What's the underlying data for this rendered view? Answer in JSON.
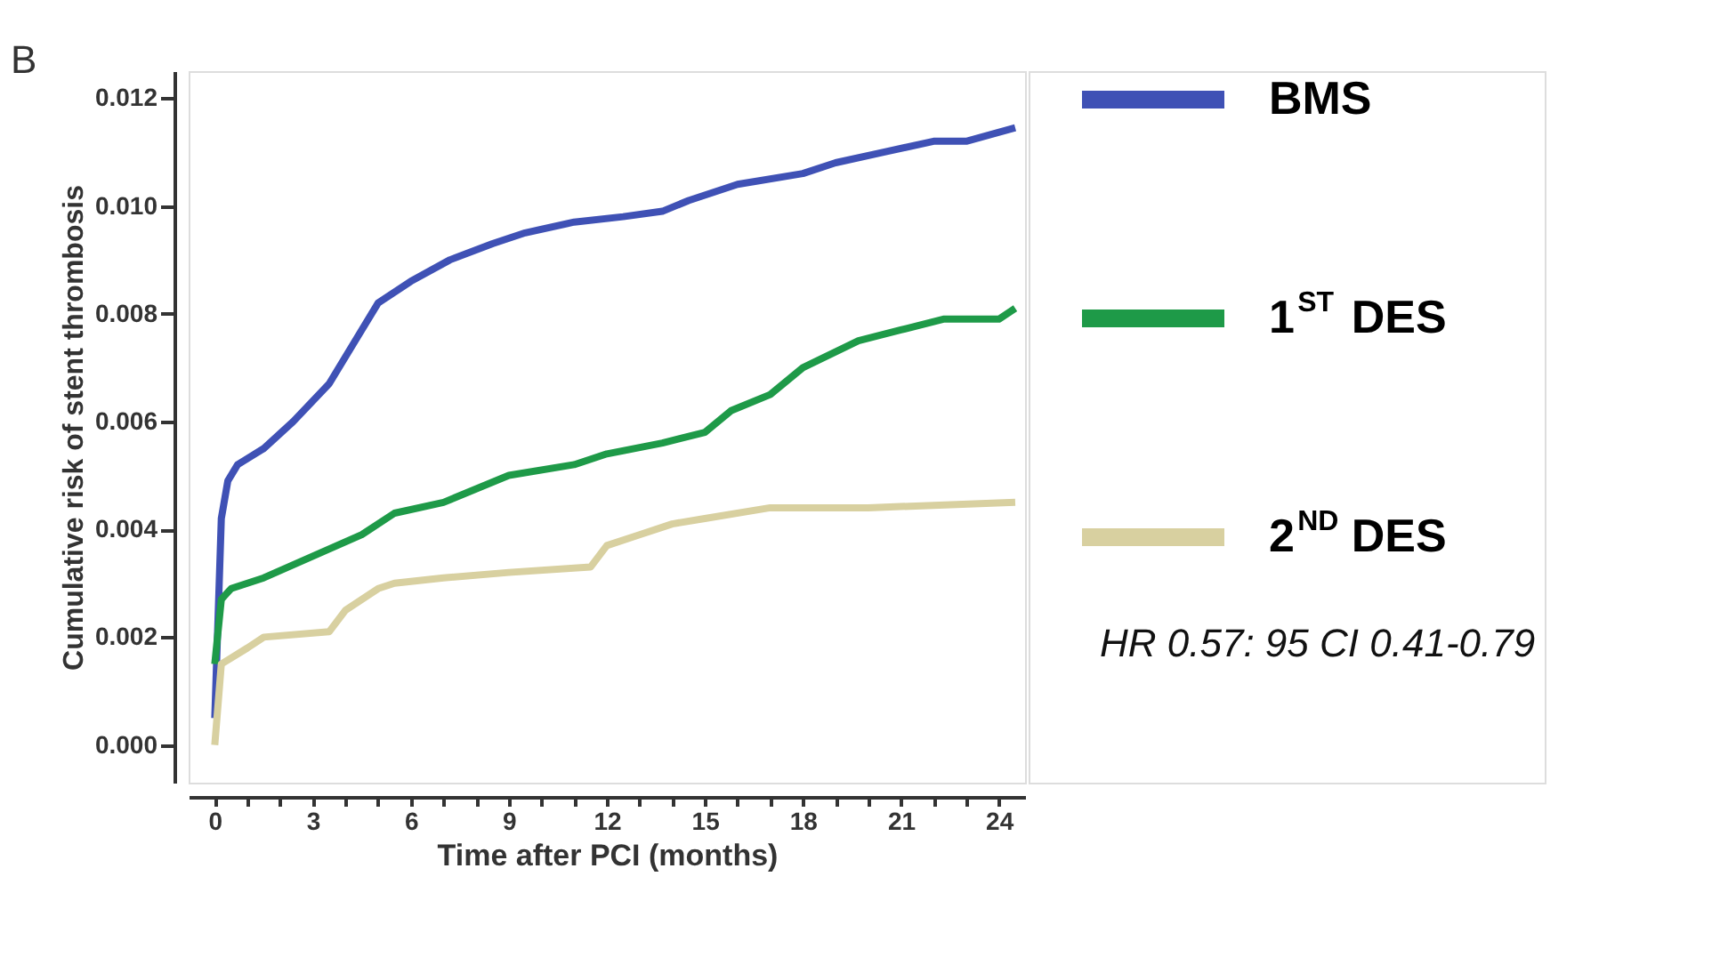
{
  "chart_data": {
    "type": "line",
    "xlabel": "Time after PCI (months)",
    "ylabel": "Cumulative risk of stent thrombosis",
    "annotations": [
      "B",
      "HR 0.57: 95 CI 0.41-0.79"
    ],
    "series": [
      {
        "name": "BMS",
        "color": "#3f51b5",
        "x": [
          0,
          0.2,
          0.4,
          0.7,
          1.5,
          2.4,
          3.5,
          4.3,
          5,
          6,
          7.2,
          8.5,
          9.5,
          11,
          12.5,
          13.7,
          14.5,
          16,
          18,
          19,
          20.5,
          22,
          23,
          24.5
        ],
        "values": [
          0.0005,
          0.0042,
          0.0049,
          0.0052,
          0.0055,
          0.006,
          0.0067,
          0.0075,
          0.0082,
          0.0086,
          0.009,
          0.0093,
          0.0095,
          0.0097,
          0.0098,
          0.0099,
          0.0101,
          0.0104,
          0.0106,
          0.0108,
          0.011,
          0.0112,
          0.0112,
          0.01145
        ]
      },
      {
        "name": "1$^{ST}$ DES",
        "color": "#1e9a48",
        "x": [
          0,
          0.2,
          0.5,
          1.5,
          3,
          4.5,
          5.5,
          7,
          9,
          11,
          12,
          13.7,
          15,
          15.8,
          17,
          18,
          19.7,
          21,
          22.3,
          24,
          24.5
        ],
        "values": [
          0.0015,
          0.0027,
          0.0029,
          0.0031,
          0.0035,
          0.0039,
          0.0043,
          0.0045,
          0.005,
          0.0052,
          0.0054,
          0.0056,
          0.0058,
          0.0062,
          0.0065,
          0.007,
          0.0075,
          0.0077,
          0.0079,
          0.0079,
          0.0081
        ]
      },
      {
        "name": "2$^{ND}$ DES",
        "color": "#d8d0a0",
        "x": [
          0,
          0.2,
          1,
          1.5,
          3.5,
          4,
          5,
          5.5,
          7,
          9,
          11.5,
          12,
          13,
          14,
          15,
          17,
          20,
          24.5
        ],
        "values": [
          0,
          0.0015,
          0.0018,
          0.002,
          0.0021,
          0.0025,
          0.0029,
          0.003,
          0.0031,
          0.0032,
          0.0033,
          0.0037,
          0.0039,
          0.0041,
          0.0042,
          0.0044,
          0.0044,
          0.0045
        ]
      }
    ],
    "xlim": [
      -0.8,
      24.8
    ],
    "ylim": [
      -0.0007,
      0.0125
    ],
    "xticks": [
      0,
      {
        "value": 1,
        "label": null
      },
      {
        "value": 2,
        "label": null
      },
      3,
      {
        "value": 4,
        "label": null
      },
      {
        "value": 5,
        "label": null
      },
      6,
      {
        "value": 7,
        "label": null
      },
      {
        "value": 8,
        "label": null
      },
      9,
      {
        "value": 10,
        "label": null
      },
      {
        "value": 11,
        "label": null
      },
      12,
      {
        "value": 13,
        "label": null
      },
      {
        "value": 14,
        "label": null
      },
      15,
      {
        "value": 16,
        "label": null
      },
      {
        "value": 17,
        "label": null
      },
      18,
      {
        "value": 19,
        "label": null
      },
      {
        "value": 20,
        "label": null
      },
      21,
      {
        "value": 22,
        "label": null
      },
      {
        "value": 23,
        "label": null
      },
      24
    ],
    "yticks": [
      {
        "value": 0,
        "label": "0.000"
      },
      {
        "value": 0.002,
        "label": "0.002"
      },
      {
        "value": 0.004,
        "label": "0.004"
      },
      {
        "value": 0.006,
        "label": "0.006"
      },
      {
        "value": 0.008,
        "label": "0.008"
      },
      {
        "value": 0.01,
        "label": "0.010"
      },
      {
        "value": 0.012,
        "label": "0.012"
      }
    ],
    "grid": false,
    "legend": "right",
    "marker": "none",
    "line_style": "solid"
  }
}
